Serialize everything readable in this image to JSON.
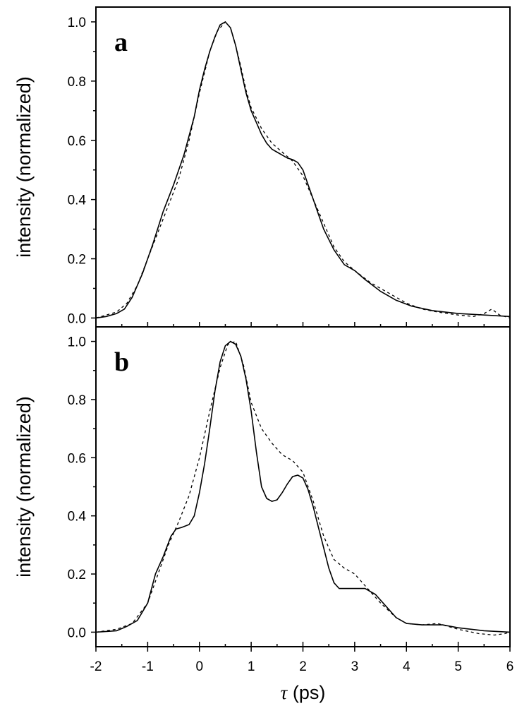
{
  "chart_data": [
    {
      "type": "line",
      "panel_label": "a",
      "ylabel": "intensity (normalized)",
      "xlabel": "",
      "xlim": [
        -2,
        6
      ],
      "ylim": [
        -0.03,
        1.05
      ],
      "yticks": [
        0.0,
        0.2,
        0.4,
        0.6,
        0.8,
        1.0
      ],
      "ytick_labels": [
        "0.0",
        "0.2",
        "0.4",
        "0.6",
        "0.8",
        "1.0"
      ],
      "series": [
        {
          "style": "solid",
          "x": [
            -2.0,
            -1.8,
            -1.6,
            -1.45,
            -1.3,
            -1.1,
            -0.9,
            -0.7,
            -0.5,
            -0.3,
            -0.1,
            0.0,
            0.1,
            0.2,
            0.3,
            0.4,
            0.5,
            0.6,
            0.7,
            0.8,
            0.9,
            1.0,
            1.1,
            1.2,
            1.3,
            1.4,
            1.5,
            1.6,
            1.7,
            1.8,
            1.9,
            2.0,
            2.1,
            2.2,
            2.3,
            2.4,
            2.6,
            2.8,
            3.0,
            3.2,
            3.5,
            3.8,
            4.1,
            4.5,
            5.0,
            5.5,
            6.0
          ],
          "y": [
            0.0,
            0.005,
            0.015,
            0.03,
            0.07,
            0.15,
            0.25,
            0.36,
            0.45,
            0.55,
            0.68,
            0.77,
            0.84,
            0.9,
            0.95,
            0.99,
            1.0,
            0.98,
            0.92,
            0.84,
            0.76,
            0.7,
            0.66,
            0.62,
            0.59,
            0.57,
            0.56,
            0.55,
            0.54,
            0.535,
            0.525,
            0.5,
            0.45,
            0.4,
            0.35,
            0.3,
            0.23,
            0.18,
            0.16,
            0.13,
            0.09,
            0.06,
            0.04,
            0.025,
            0.015,
            0.01,
            0.005
          ]
        },
        {
          "style": "dashed",
          "x": [
            -2.0,
            -1.6,
            -1.4,
            -1.2,
            -1.0,
            -0.8,
            -0.6,
            -0.4,
            -0.2,
            0.0,
            0.2,
            0.35,
            0.5,
            0.6,
            0.7,
            0.8,
            0.9,
            1.0,
            1.2,
            1.4,
            1.6,
            1.8,
            2.0,
            2.2,
            2.4,
            2.6,
            2.8,
            3.0,
            3.3,
            3.6,
            4.0,
            4.3,
            4.6,
            5.0,
            5.3,
            5.5,
            5.65,
            5.8,
            6.0
          ],
          "y": [
            0.0,
            0.02,
            0.05,
            0.11,
            0.2,
            0.29,
            0.38,
            0.47,
            0.6,
            0.76,
            0.9,
            0.97,
            1.0,
            0.98,
            0.92,
            0.85,
            0.77,
            0.71,
            0.64,
            0.59,
            0.56,
            0.53,
            0.48,
            0.4,
            0.32,
            0.24,
            0.19,
            0.16,
            0.12,
            0.09,
            0.05,
            0.03,
            0.02,
            0.01,
            0.005,
            0.015,
            0.03,
            0.01,
            0.0
          ]
        }
      ]
    },
    {
      "type": "line",
      "panel_label": "b",
      "ylabel": "intensity (normalized)",
      "xlabel": "τ (ps)",
      "xlabel_symbol": "τ",
      "xlabel_unit": " (ps)",
      "xlim": [
        -2,
        6
      ],
      "ylim": [
        -0.05,
        1.05
      ],
      "xticks": [
        -2,
        -1,
        0,
        1,
        2,
        3,
        4,
        5,
        6
      ],
      "xtick_labels": [
        "-2",
        "-1",
        "0",
        "1",
        "2",
        "3",
        "4",
        "5",
        "6"
      ],
      "yticks": [
        0.0,
        0.2,
        0.4,
        0.6,
        0.8,
        1.0
      ],
      "ytick_labels": [
        "0.0",
        "0.2",
        "0.4",
        "0.6",
        "0.8",
        "1.0"
      ],
      "series": [
        {
          "style": "solid",
          "x": [
            -2.0,
            -1.6,
            -1.4,
            -1.2,
            -1.0,
            -0.85,
            -0.7,
            -0.55,
            -0.45,
            -0.35,
            -0.2,
            -0.1,
            0.0,
            0.1,
            0.2,
            0.3,
            0.4,
            0.5,
            0.6,
            0.7,
            0.8,
            0.9,
            1.0,
            1.1,
            1.2,
            1.3,
            1.4,
            1.5,
            1.6,
            1.7,
            1.8,
            1.9,
            2.0,
            2.1,
            2.2,
            2.3,
            2.4,
            2.5,
            2.6,
            2.7,
            2.8,
            3.0,
            3.2,
            3.4,
            3.6,
            3.8,
            4.0,
            4.3,
            4.7,
            5.0,
            5.5,
            6.0
          ],
          "y": [
            0.0,
            0.005,
            0.02,
            0.04,
            0.1,
            0.2,
            0.26,
            0.33,
            0.355,
            0.36,
            0.37,
            0.4,
            0.48,
            0.58,
            0.7,
            0.83,
            0.93,
            0.985,
            1.0,
            0.99,
            0.95,
            0.87,
            0.76,
            0.62,
            0.5,
            0.46,
            0.45,
            0.455,
            0.48,
            0.51,
            0.535,
            0.54,
            0.53,
            0.49,
            0.43,
            0.36,
            0.29,
            0.22,
            0.17,
            0.15,
            0.15,
            0.15,
            0.15,
            0.13,
            0.09,
            0.05,
            0.03,
            0.025,
            0.025,
            0.015,
            0.005,
            0.0
          ]
        },
        {
          "style": "dashed",
          "x": [
            -2.0,
            -1.6,
            -1.3,
            -1.0,
            -0.8,
            -0.6,
            -0.4,
            -0.2,
            0.0,
            0.2,
            0.4,
            0.55,
            0.7,
            0.85,
            1.0,
            1.2,
            1.4,
            1.6,
            1.8,
            2.0,
            2.2,
            2.4,
            2.6,
            2.8,
            3.0,
            3.2,
            3.5,
            3.8,
            4.0,
            4.3,
            4.6,
            5.0,
            5.4,
            5.7,
            5.9,
            6.0
          ],
          "y": [
            0.0,
            0.01,
            0.03,
            0.1,
            0.2,
            0.3,
            0.38,
            0.47,
            0.6,
            0.76,
            0.91,
            0.99,
            1.0,
            0.92,
            0.79,
            0.7,
            0.65,
            0.61,
            0.59,
            0.55,
            0.45,
            0.33,
            0.25,
            0.22,
            0.2,
            0.16,
            0.1,
            0.05,
            0.03,
            0.025,
            0.03,
            0.01,
            -0.005,
            -0.01,
            -0.005,
            0.0
          ]
        }
      ]
    }
  ]
}
